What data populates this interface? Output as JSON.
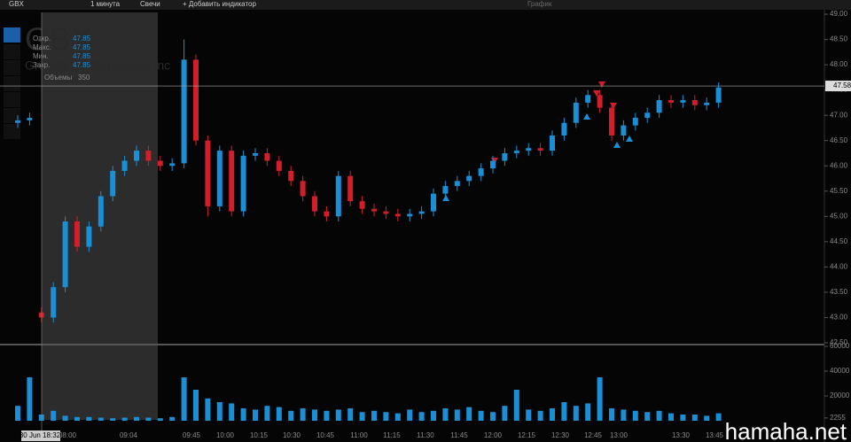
{
  "toolbar": {
    "symbol": "GBX",
    "interval": "1 минута",
    "style": "Свечи",
    "add": "+ Добавить индикатор",
    "panel": "График"
  },
  "watermark": {
    "symbol": "GBX",
    "company": "Greenbrier Companies Inc"
  },
  "legend": {
    "open_label": "Откр.",
    "open": 47.85,
    "high_label": "Макс.",
    "high": 47.85,
    "low_label": "Мин.",
    "low": 47.85,
    "close_label": "Закр.",
    "close": 47.85,
    "volume_label": "Объемы",
    "volume": 350
  },
  "site": "hamaha.net",
  "chart_data": {
    "type": "candlestick",
    "open": [
      46.85,
      46.9,
      43.1,
      43.0,
      43.6,
      44.9,
      44.4,
      44.8,
      45.4,
      45.9,
      46.1,
      46.3,
      46.1,
      46.0,
      46.05,
      48.1,
      46.5,
      45.2,
      46.3,
      45.1,
      46.2,
      46.25,
      46.1,
      45.9,
      45.7,
      45.4,
      45.1,
      45.0,
      45.8,
      45.3,
      45.15,
      45.1,
      45.05,
      45.0,
      45.05,
      45.1,
      45.45,
      45.6,
      45.7,
      45.8,
      45.95,
      46.1,
      46.25,
      46.3,
      46.35,
      46.3,
      46.6,
      46.85,
      47.25,
      47.4,
      47.15,
      46.6,
      46.8,
      46.95,
      47.05,
      47.3,
      47.25,
      47.3,
      47.2,
      47.25
    ],
    "high": [
      47.0,
      47.05,
      43.2,
      43.7,
      45.0,
      45.0,
      44.9,
      45.5,
      46.0,
      46.2,
      46.4,
      46.4,
      46.2,
      46.15,
      48.5,
      48.2,
      46.6,
      46.4,
      46.4,
      46.3,
      46.35,
      46.35,
      46.2,
      46.0,
      45.8,
      45.5,
      45.2,
      45.9,
      45.9,
      45.4,
      45.25,
      45.2,
      45.15,
      45.15,
      45.2,
      45.55,
      45.7,
      45.8,
      45.9,
      46.05,
      46.2,
      46.35,
      46.4,
      46.45,
      46.45,
      46.7,
      46.95,
      47.35,
      47.5,
      47.5,
      47.25,
      46.9,
      47.05,
      47.15,
      47.4,
      47.4,
      47.4,
      47.4,
      47.35,
      47.65
    ],
    "low": [
      46.75,
      46.8,
      42.9,
      42.9,
      43.5,
      44.3,
      44.3,
      44.7,
      45.3,
      45.8,
      46.0,
      46.0,
      45.9,
      45.9,
      45.95,
      46.4,
      45.0,
      45.1,
      45.0,
      45.0,
      46.1,
      46.0,
      45.8,
      45.6,
      45.3,
      45.0,
      44.9,
      44.9,
      45.2,
      45.05,
      45.0,
      44.95,
      44.9,
      44.9,
      44.95,
      45.0,
      45.35,
      45.5,
      45.6,
      45.7,
      45.85,
      46.0,
      46.15,
      46.2,
      46.2,
      46.2,
      46.5,
      46.75,
      47.15,
      47.05,
      46.5,
      46.5,
      46.7,
      46.85,
      46.95,
      47.15,
      47.15,
      47.1,
      47.1,
      47.15
    ],
    "close": [
      46.9,
      46.95,
      43.0,
      43.6,
      44.9,
      44.4,
      44.8,
      45.4,
      45.9,
      46.1,
      46.3,
      46.1,
      46.0,
      46.05,
      48.1,
      46.5,
      45.2,
      46.3,
      45.1,
      46.2,
      46.25,
      46.1,
      45.9,
      45.7,
      45.4,
      45.1,
      45.0,
      45.8,
      45.3,
      45.15,
      45.1,
      45.05,
      45.0,
      45.05,
      45.1,
      45.45,
      45.6,
      45.7,
      45.8,
      45.95,
      46.1,
      46.25,
      46.3,
      46.35,
      46.3,
      46.6,
      46.85,
      47.25,
      47.4,
      47.15,
      46.6,
      46.8,
      46.95,
      47.05,
      47.3,
      47.25,
      47.3,
      47.2,
      47.25,
      47.55
    ],
    "volume": [
      12000,
      35000,
      5000,
      8000,
      4000,
      3000,
      3000,
      2500,
      2000,
      2500,
      3000,
      2500,
      2000,
      3000,
      35000,
      25000,
      18000,
      15000,
      14000,
      10000,
      9000,
      12000,
      11000,
      8000,
      10000,
      9000,
      8000,
      9000,
      10000,
      7000,
      8000,
      7000,
      6000,
      9000,
      7000,
      8000,
      10000,
      9000,
      11000,
      8000,
      7000,
      12000,
      25000,
      9000,
      8000,
      10000,
      15000,
      12000,
      14000,
      35000,
      10000,
      9000,
      8000,
      7000,
      8000,
      6000,
      5000,
      5000,
      4000,
      6000
    ],
    "up_color": "#1a8fd6",
    "down_color": "#d01f2a",
    "volume_color": "#1a8fd6",
    "ylim": [
      42.5,
      49
    ],
    "yticks": [
      {
        "value": 42.5,
        "label": "42.50"
      },
      {
        "value": 43,
        "label": "43.00"
      },
      {
        "value": 43.5,
        "label": "43.50"
      },
      {
        "value": 44,
        "label": "44.00"
      },
      {
        "value": 44.5,
        "label": "44.50"
      },
      {
        "value": 45,
        "label": "45.00"
      },
      {
        "value": 45.5,
        "label": "45.50"
      },
      {
        "value": 46,
        "label": "46.00"
      },
      {
        "value": 46.5,
        "label": "46.50"
      },
      {
        "value": 47,
        "label": "47.00"
      },
      {
        "value": 47.5,
        "label": "47.50"
      },
      {
        "value": 48,
        "label": "48.00"
      },
      {
        "value": 48.5,
        "label": "48.50"
      },
      {
        "value": 49,
        "label": "49.00"
      }
    ],
    "y2lim": [
      0,
      60000
    ],
    "y2ticks": [
      2255,
      20000,
      40000,
      60000
    ],
    "last_price": 47.58,
    "x_labels": [
      "30 Jun 18:32",
      "08:00",
      "09:04",
      "09:45",
      "10:00",
      "10:15",
      "10:30",
      "10:45",
      "11:00",
      "11:15",
      "11:30",
      "11:45",
      "12:00",
      "12:15",
      "12:30",
      "12:45",
      "13:00",
      "13:30",
      "13:45"
    ]
  }
}
